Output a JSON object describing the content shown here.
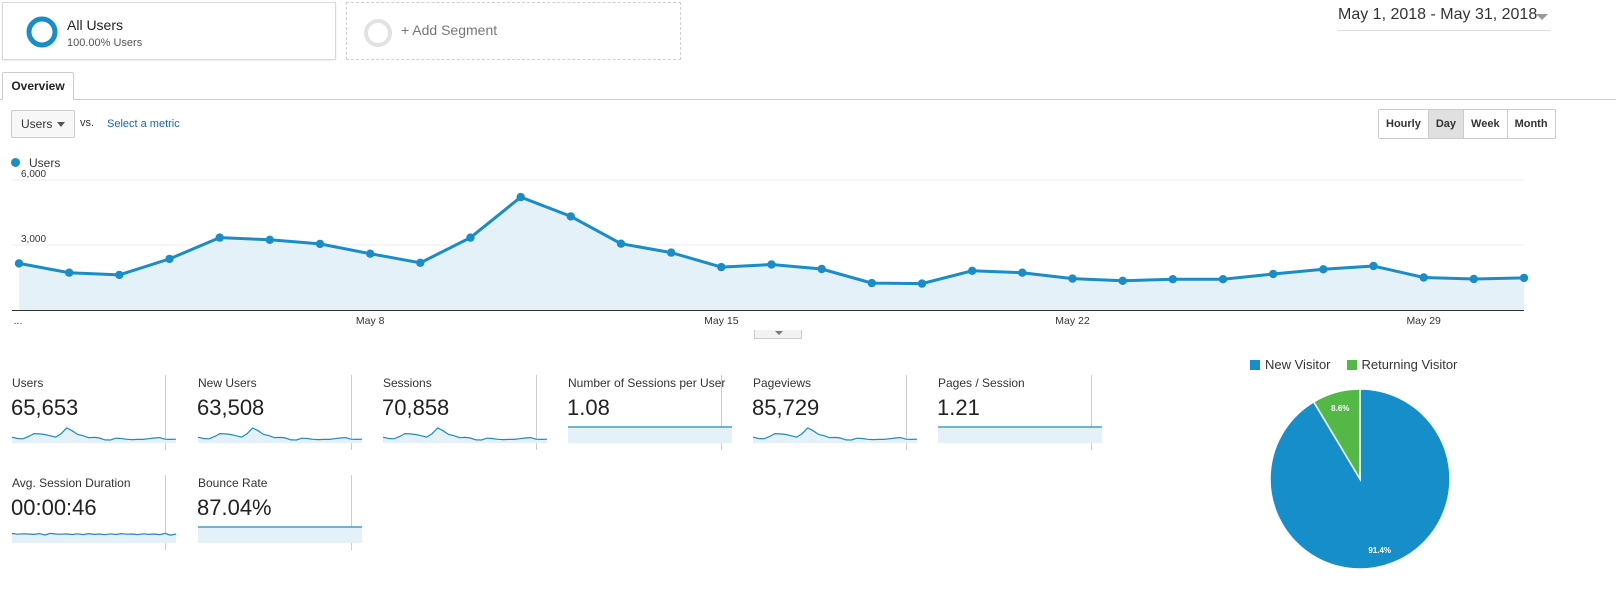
{
  "segments": {
    "all_users": {
      "title": "All Users",
      "subtitle": "100.00% Users"
    },
    "add_segment": {
      "label": "+ Add Segment"
    }
  },
  "date_range": "May 1, 2018 - May 31, 2018",
  "tabs": [
    {
      "label": "Overview"
    }
  ],
  "toolbar": {
    "metric": "Users",
    "vs": "vs.",
    "select_metric": "Select a metric",
    "granularity": [
      "Hourly",
      "Day",
      "Week",
      "Month"
    ],
    "active_granularity": "Day"
  },
  "colors": {
    "series": "#1a8cc8",
    "area": "#e4f1f9",
    "new_visitor": "#168ec9",
    "returning_visitor": "#54b847"
  },
  "chart_data": {
    "type": "area",
    "x": [
      "May 1",
      "May 2",
      "May 3",
      "May 4",
      "May 5",
      "May 6",
      "May 7",
      "May 8",
      "May 9",
      "May 10",
      "May 11",
      "May 12",
      "May 13",
      "May 14",
      "May 15",
      "May 16",
      "May 17",
      "May 18",
      "May 19",
      "May 20",
      "May 21",
      "May 22",
      "May 23",
      "May 24",
      "May 25",
      "May 26",
      "May 27",
      "May 28",
      "May 29",
      "May 30",
      "May 31"
    ],
    "series": [
      {
        "name": "Users",
        "values": [
          2150,
          1720,
          1620,
          2360,
          3340,
          3240,
          3050,
          2600,
          2180,
          3340,
          5210,
          4320,
          3060,
          2650,
          1980,
          2100,
          1890,
          1240,
          1220,
          1810,
          1720,
          1450,
          1350,
          1420,
          1420,
          1660,
          1880,
          2030,
          1500,
          1430,
          1480
        ]
      }
    ],
    "yticks": [
      "6,000",
      "3,000"
    ],
    "ylim": [
      0,
      6000
    ],
    "xticks": [
      {
        "label": "...",
        "x": "May 1"
      },
      {
        "label": "May 8",
        "x": "May 8"
      },
      {
        "label": "May 15",
        "x": "May 15"
      },
      {
        "label": "May 22",
        "x": "May 22"
      },
      {
        "label": "May 29",
        "x": "May 29"
      }
    ],
    "grid": true,
    "legend_position": "top-left"
  },
  "kpis": [
    {
      "name": "Users",
      "value": "65,653",
      "spark": "users"
    },
    {
      "name": "New Users",
      "value": "63,508",
      "spark": "users"
    },
    {
      "name": "Sessions",
      "value": "70,858",
      "spark": "users"
    },
    {
      "name": "Number of Sessions per User",
      "value": "1.08",
      "spark": "flat"
    },
    {
      "name": "Pageviews",
      "value": "85,729",
      "spark": "users"
    },
    {
      "name": "Pages / Session",
      "value": "1.21",
      "spark": "flat"
    },
    {
      "name": "Avg. Session Duration",
      "value": "00:00:46",
      "spark": "wavy"
    },
    {
      "name": "Bounce Rate",
      "value": "87.04%",
      "spark": "flat"
    }
  ],
  "sparklines": {
    "flat": [
      0.5,
      0.5,
      0.51,
      0.5,
      0.5,
      0.51,
      0.5,
      0.5,
      0.5,
      0.5,
      0.51,
      0.5,
      0.5,
      0.5,
      0.5,
      0.5,
      0.5,
      0.5,
      0.5,
      0.5,
      0.5,
      0.5,
      0.51,
      0.5,
      0.5,
      0.5,
      0.5,
      0.5,
      0.5,
      0.5,
      0.5
    ],
    "wavy": [
      0.55,
      0.48,
      0.52,
      0.5,
      0.47,
      0.53,
      0.42,
      0.55,
      0.5,
      0.48,
      0.51,
      0.46,
      0.52,
      0.45,
      0.53,
      0.47,
      0.5,
      0.44,
      0.52,
      0.46,
      0.53,
      0.48,
      0.5,
      0.45,
      0.52,
      0.47,
      0.5,
      0.45,
      0.55,
      0.4,
      0.5
    ]
  },
  "pie_chart": {
    "type": "pie",
    "legend": [
      {
        "label": "New Visitor",
        "color": "#168ec9"
      },
      {
        "label": "Returning Visitor",
        "color": "#54b847"
      }
    ],
    "slices": [
      {
        "label": "New Visitor",
        "value": 91.4,
        "display": "91.4%"
      },
      {
        "label": "Returning Visitor",
        "value": 8.6,
        "display": "8.6%"
      }
    ]
  }
}
